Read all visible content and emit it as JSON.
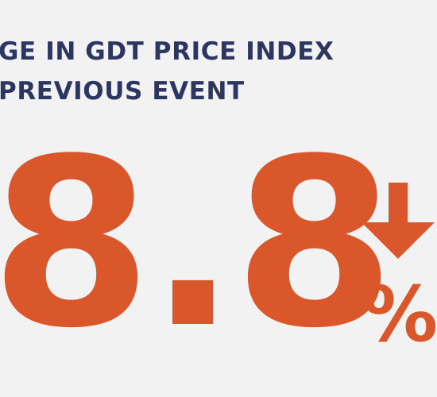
{
  "header": {
    "line1": "GE IN GDT PRICE INDEX",
    "line2": "PREVIOUS EVENT"
  },
  "metric": {
    "value": "8.8",
    "unit": "%",
    "direction": "down"
  },
  "colors": {
    "background": "#f2f2f2",
    "headline": "#2d3561",
    "accent": "#d9572b"
  },
  "icons": {
    "trend": "down-arrow-icon"
  }
}
